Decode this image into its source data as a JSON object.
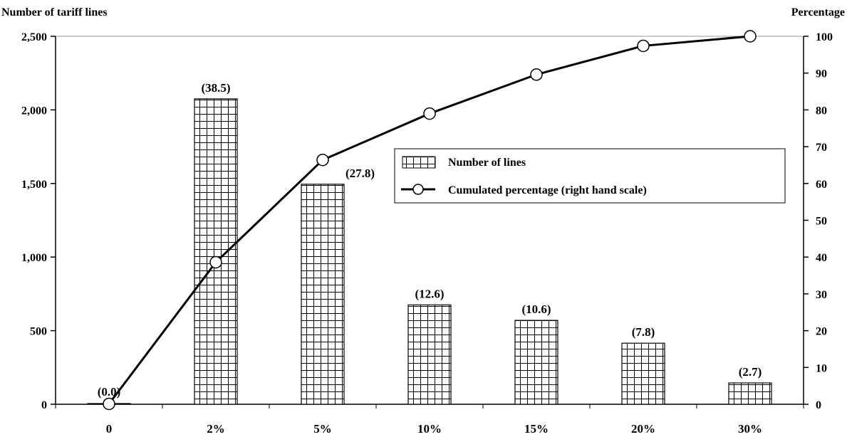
{
  "chart_data": {
    "type": "bar+line",
    "categories": [
      "0",
      "2%",
      "5%",
      "10%",
      "15%",
      "20%",
      "30%"
    ],
    "series": [
      {
        "name": "Number of lines",
        "type": "bar",
        "axis": "left",
        "values": [
          5,
          2075,
          1495,
          675,
          570,
          415,
          145
        ],
        "data_labels": [
          "(0.0)",
          "(38.5)",
          "(27.8)",
          "(12.6)",
          "(10.6)",
          "(7.8)",
          "(2.7)"
        ]
      },
      {
        "name": "Cumulated percentage (right hand scale)",
        "type": "line",
        "axis": "right",
        "values": [
          0.1,
          38.6,
          66.4,
          79.0,
          89.6,
          97.4,
          100
        ]
      }
    ],
    "ylabel_left": "Number of tariff lines",
    "ylabel_right": "Percentage",
    "ylim_left": [
      0,
      2500
    ],
    "ylim_right": [
      0,
      100
    ],
    "yticks_left": [
      "0",
      "500",
      "1,000",
      "1,500",
      "2,000",
      "2,500"
    ],
    "yticks_right": [
      "0",
      "10",
      "20",
      "30",
      "40",
      "50",
      "60",
      "70",
      "80",
      "90",
      "100"
    ],
    "grid": false,
    "legend_position": "inside-right",
    "colors": {
      "bar_fill": "#ffffff",
      "bar_pattern": "#000000",
      "line": "#000000",
      "marker_fill": "#ffffff"
    }
  }
}
